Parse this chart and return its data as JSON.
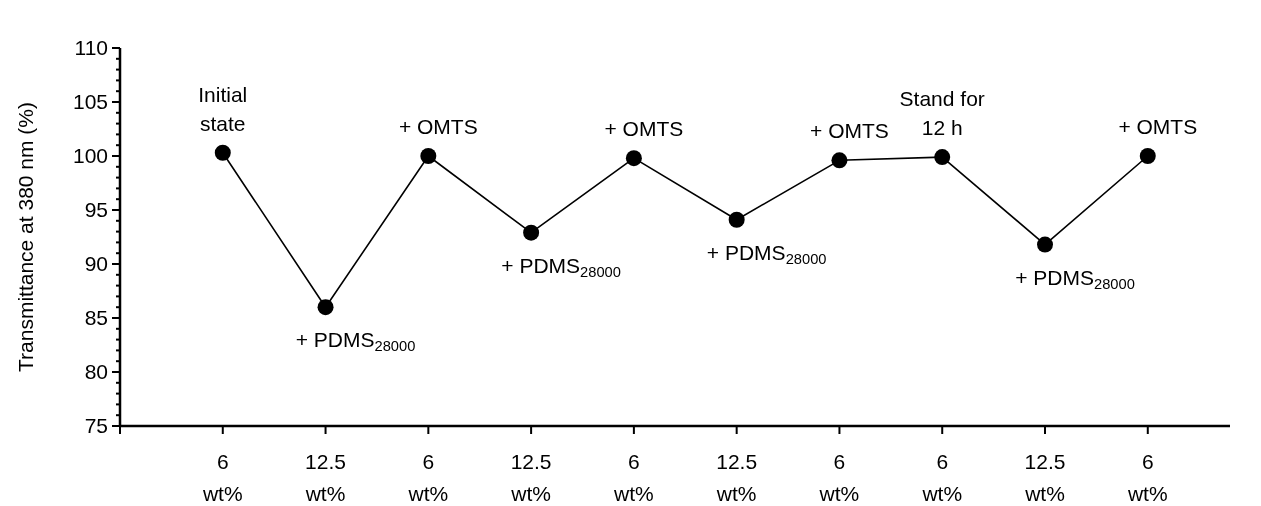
{
  "chart_data": {
    "type": "line",
    "ylabel": "Transmittance at 380 nm (%)",
    "categories": [
      "6\nwt%",
      "12.5\nwt%",
      "6\nwt%",
      "12.5\nwt%",
      "6\nwt%",
      "12.5\nwt%",
      "6\nwt%",
      "6\nwt%",
      "12.5\nwt%",
      "6\nwt%"
    ],
    "series": [
      {
        "color": "#000000",
        "values": [
          100.3,
          86.0,
          100.0,
          92.9,
          99.8,
          94.1,
          99.6,
          99.9,
          91.8,
          100.0
        ]
      }
    ],
    "ylim": [
      75,
      110
    ],
    "yticks": [
      75,
      {
        "value": 76,
        "label": null
      },
      {
        "value": 77,
        "label": null
      },
      {
        "value": 78,
        "label": null
      },
      {
        "value": 79,
        "label": null
      },
      80,
      {
        "value": 81,
        "label": null
      },
      {
        "value": 82,
        "label": null
      },
      {
        "value": 83,
        "label": null
      },
      {
        "value": 84,
        "label": null
      },
      85,
      {
        "value": 86,
        "label": null
      },
      {
        "value": 87,
        "label": null
      },
      {
        "value": 88,
        "label": null
      },
      {
        "value": 89,
        "label": null
      },
      90,
      {
        "value": 91,
        "label": null
      },
      {
        "value": 92,
        "label": null
      },
      {
        "value": 93,
        "label": null
      },
      {
        "value": 94,
        "label": null
      },
      95,
      {
        "value": 96,
        "label": null
      },
      {
        "value": 97,
        "label": null
      },
      {
        "value": 98,
        "label": null
      },
      {
        "value": 99,
        "label": null
      },
      100,
      {
        "value": 101,
        "label": null
      },
      {
        "value": 102,
        "label": null
      },
      {
        "value": 103,
        "label": null
      },
      {
        "value": 104,
        "label": null
      },
      105,
      {
        "value": 106,
        "label": null
      },
      {
        "value": 107,
        "label": null
      },
      {
        "value": 108,
        "label": null
      },
      {
        "value": 109,
        "label": null
      },
      110
    ],
    "marker": "circle",
    "line_style": "solid",
    "grid": false,
    "annotations": [
      "Initial\nstate",
      "+ PDMS$_{28000}$",
      "+ OMTS",
      "+ PDMS$_{28000}$",
      "+ OMTS",
      "+ PDMS$_{28000}$",
      "+ OMTS",
      "Stand for\n12 h",
      "+ PDMS$_{28000}$",
      "+ OMTS"
    ]
  }
}
